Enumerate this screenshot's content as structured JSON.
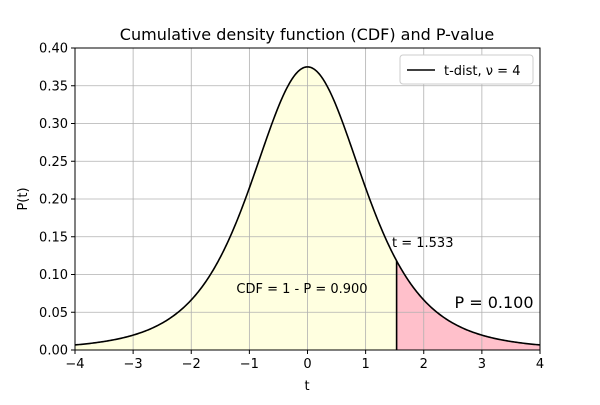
{
  "chart_data": {
    "type": "line",
    "title": "Cumulative density function (CDF) and P-value",
    "xlabel": "t",
    "ylabel": "P(t)",
    "xlim": [
      -4,
      4
    ],
    "ylim": [
      0,
      0.4
    ],
    "grid": true,
    "x_ticks": [
      "−4",
      "−3",
      "−2",
      "−1",
      "0",
      "1",
      "2",
      "3",
      "4"
    ],
    "y_ticks": [
      "0.00",
      "0.05",
      "0.10",
      "0.15",
      "0.20",
      "0.25",
      "0.30",
      "0.35",
      "0.40"
    ],
    "legend": {
      "placement": "top-right",
      "label": "t-dist, ν = 4"
    },
    "series": [
      {
        "name": "t-dist, ν = 4",
        "distribution": "student-t",
        "df": 4,
        "color": "#000000"
      }
    ],
    "t_stat": 1.533,
    "regions": [
      {
        "label": "CDF = 1 - P = 0.900",
        "from": -4,
        "to": 1.533,
        "color": "#ffffe0"
      },
      {
        "label": "P = 0.100",
        "from": 1.533,
        "to": 4,
        "color": "#ffc0cb",
        "label_color": "#8b0000"
      }
    ],
    "annotations": {
      "t_value": "t = 1.533",
      "cdf": "CDF = 1 - P = 0.900",
      "p_value": "P = 0.100"
    }
  }
}
